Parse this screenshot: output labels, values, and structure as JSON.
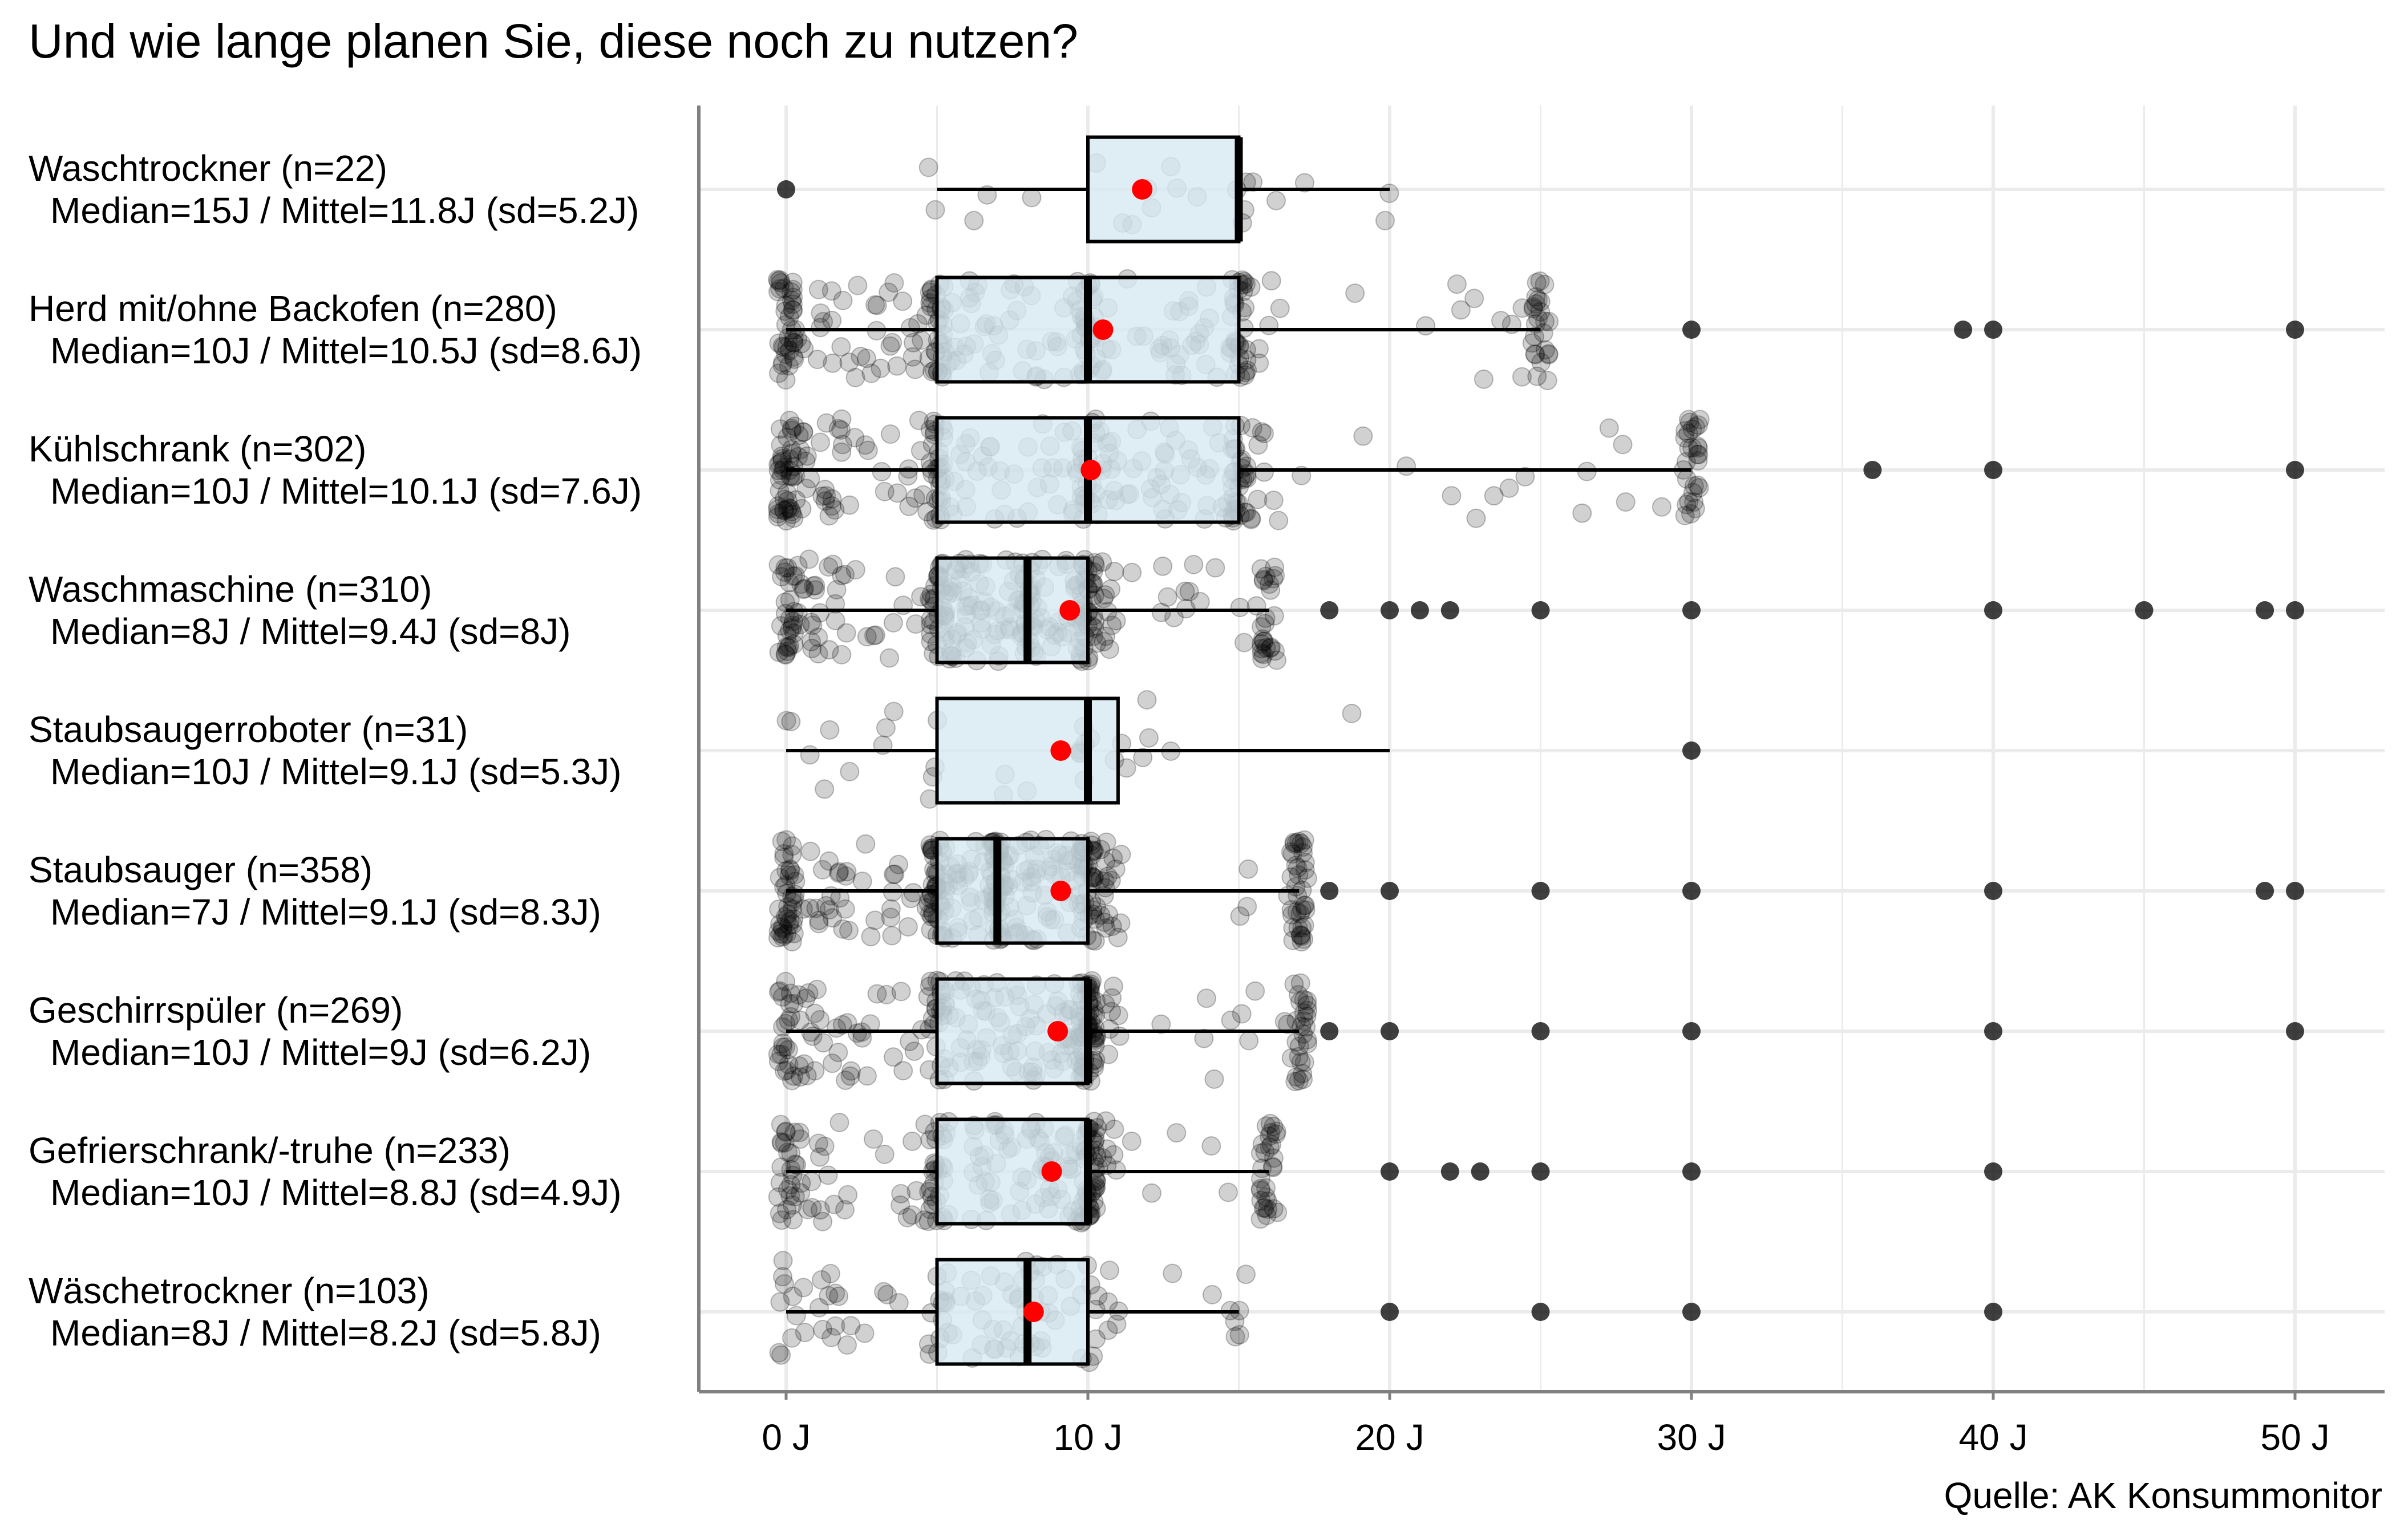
{
  "title": "Und wie lange planen Sie, diese noch zu nutzen?",
  "caption": "Quelle: AK Konsummonitor",
  "colors": {
    "box_fill": "#d6eaf1",
    "mean_point": "#ff0000",
    "jitter": "#000000",
    "grid": "#ebebeb",
    "axis": "#808080"
  },
  "chart_data": {
    "type": "boxplot",
    "orientation": "horizontal",
    "title": "Und wie lange planen Sie, diese noch zu nutzen?",
    "xlabel": "",
    "ylabel": "",
    "xlim": [
      -3,
      53
    ],
    "x_ticks": [
      0,
      10,
      20,
      30,
      40,
      50
    ],
    "x_tick_labels": [
      "0 J",
      "10 J",
      "20 J",
      "30 J",
      "40 J",
      "50 J"
    ],
    "grid": true,
    "categories": [
      {
        "label": "Waschtrockner (n=22)",
        "stats": "Median=15J / Mittel=11.8J (sd=5.2J)",
        "n": 22,
        "q1": 10,
        "median": 15,
        "q3": 15,
        "whisker_low": 5,
        "whisker_high": 20,
        "mean": 11.8,
        "outliers": [
          0
        ]
      },
      {
        "label": "Herd mit/ohne Backofen (n=280)",
        "stats": "Median=10J / Mittel=10.5J (sd=8.6J)",
        "n": 280,
        "q1": 5,
        "median": 10,
        "q3": 15,
        "whisker_low": 0,
        "whisker_high": 25,
        "mean": 10.5,
        "outliers": [
          30,
          39,
          40,
          50
        ]
      },
      {
        "label": "Kühlschrank (n=302)",
        "stats": "Median=10J / Mittel=10.1J (sd=7.6J)",
        "n": 302,
        "q1": 5,
        "median": 10,
        "q3": 15,
        "whisker_low": 0,
        "whisker_high": 30,
        "mean": 10.1,
        "outliers": [
          36,
          40,
          50
        ]
      },
      {
        "label": "Waschmaschine (n=310)",
        "stats": "Median=8J / Mittel=9.4J (sd=8J)",
        "n": 310,
        "q1": 5,
        "median": 8,
        "q3": 10,
        "whisker_low": 0,
        "whisker_high": 16,
        "mean": 9.4,
        "outliers": [
          18,
          20,
          21,
          22,
          25,
          30,
          40,
          45,
          49,
          50
        ]
      },
      {
        "label": "Staubsaugerroboter (n=31)",
        "stats": "Median=10J / Mittel=9.1J (sd=5.3J)",
        "n": 31,
        "q1": 5,
        "median": 10,
        "q3": 11,
        "whisker_low": 0,
        "whisker_high": 20,
        "mean": 9.1,
        "outliers": [
          30
        ]
      },
      {
        "label": "Staubsauger (n=358)",
        "stats": "Median=7J / Mittel=9.1J (sd=8.3J)",
        "n": 358,
        "q1": 5,
        "median": 7,
        "q3": 10,
        "whisker_low": 0,
        "whisker_high": 17,
        "mean": 9.1,
        "outliers": [
          18,
          20,
          25,
          30,
          40,
          49,
          50
        ]
      },
      {
        "label": "Geschirrspüler (n=269)",
        "stats": "Median=10J / Mittel=9J (sd=6.2J)",
        "n": 269,
        "q1": 5,
        "median": 10,
        "q3": 10,
        "whisker_low": 0,
        "whisker_high": 17,
        "mean": 9,
        "outliers": [
          18,
          20,
          25,
          30,
          40,
          50
        ]
      },
      {
        "label": "Gefrierschrank/-truhe (n=233)",
        "stats": "Median=10J / Mittel=8.8J (sd=4.9J)",
        "n": 233,
        "q1": 5,
        "median": 10,
        "q3": 10,
        "whisker_low": 0,
        "whisker_high": 16,
        "mean": 8.8,
        "outliers": [
          20,
          22,
          23,
          25,
          30,
          40
        ]
      },
      {
        "label": "Wäschetrockner (n=103)",
        "stats": "Median=8J / Mittel=8.2J (sd=5.8J)",
        "n": 103,
        "q1": 5,
        "median": 8,
        "q3": 10,
        "whisker_low": 0,
        "whisker_high": 15,
        "mean": 8.2,
        "outliers": [
          20,
          25,
          30,
          40
        ]
      }
    ]
  }
}
